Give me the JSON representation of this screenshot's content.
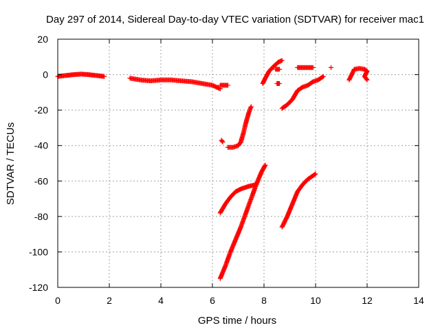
{
  "chart_data": {
    "type": "scatter",
    "title": "Day 297 of 2014, Sidereal Day-to-day VTEC variation (SDTVAR) for receiver mac1",
    "xlabel": "GPS time / hours",
    "ylabel": "SDTVAR / TECUs",
    "xlim": [
      0,
      14
    ],
    "ylim": [
      -120,
      20
    ],
    "xticks": [
      0,
      2,
      4,
      6,
      8,
      10,
      12,
      14
    ],
    "yticks": [
      -120,
      -100,
      -80,
      -60,
      -40,
      -20,
      0,
      20
    ],
    "grid": true,
    "marker": "+",
    "color": "#ff0000",
    "segments": [
      {
        "points": [
          [
            0.0,
            -1
          ],
          [
            0.3,
            -0.5
          ],
          [
            0.6,
            0
          ],
          [
            0.9,
            0.3
          ],
          [
            1.2,
            0
          ],
          [
            1.5,
            -0.5
          ],
          [
            1.8,
            -1
          ]
        ]
      },
      {
        "points": [
          [
            2.8,
            -2
          ],
          [
            3.2,
            -3
          ],
          [
            3.6,
            -3.5
          ],
          [
            4.0,
            -3
          ],
          [
            4.4,
            -3
          ],
          [
            4.8,
            -3.5
          ],
          [
            5.2,
            -4
          ],
          [
            5.6,
            -5
          ],
          [
            6.0,
            -6
          ],
          [
            6.3,
            -8
          ]
        ]
      },
      {
        "points": [
          [
            6.3,
            -6
          ],
          [
            6.6,
            -6
          ]
        ]
      },
      {
        "points": [
          [
            6.35,
            -37
          ],
          [
            6.4,
            -38
          ]
        ]
      },
      {
        "points": [
          [
            6.6,
            -41
          ],
          [
            6.8,
            -41
          ],
          [
            7.0,
            -40
          ],
          [
            7.1,
            -38
          ],
          [
            7.2,
            -33
          ],
          [
            7.3,
            -27
          ],
          [
            7.4,
            -22
          ],
          [
            7.5,
            -18
          ]
        ]
      },
      {
        "points": [
          [
            6.3,
            -78
          ],
          [
            6.5,
            -73
          ],
          [
            6.7,
            -69
          ],
          [
            6.9,
            -66
          ],
          [
            7.1,
            -64.5
          ],
          [
            7.4,
            -63
          ],
          [
            7.7,
            -62
          ]
        ]
      },
      {
        "points": [
          [
            6.3,
            -115
          ],
          [
            6.5,
            -108
          ],
          [
            6.7,
            -100
          ],
          [
            6.9,
            -93
          ],
          [
            7.1,
            -86
          ],
          [
            7.3,
            -78
          ],
          [
            7.5,
            -70
          ],
          [
            7.7,
            -62
          ],
          [
            7.9,
            -55
          ],
          [
            8.05,
            -51
          ]
        ]
      },
      {
        "points": [
          [
            7.95,
            -5
          ],
          [
            8.05,
            -2
          ],
          [
            8.2,
            2
          ],
          [
            8.4,
            5
          ],
          [
            8.55,
            7
          ],
          [
            8.7,
            8
          ]
        ]
      },
      {
        "points": [
          [
            8.45,
            3
          ],
          [
            8.6,
            3
          ]
        ]
      },
      {
        "points": [
          [
            8.5,
            -5
          ],
          [
            8.6,
            -5
          ]
        ]
      },
      {
        "points": [
          [
            8.7,
            -19
          ],
          [
            8.9,
            -17
          ],
          [
            9.1,
            -14
          ],
          [
            9.3,
            -9
          ],
          [
            9.5,
            -7
          ],
          [
            9.7,
            -6
          ],
          [
            9.9,
            -4
          ],
          [
            10.1,
            -3
          ],
          [
            10.3,
            -1
          ]
        ]
      },
      {
        "points": [
          [
            9.3,
            4
          ],
          [
            9.6,
            4
          ],
          [
            9.9,
            4
          ]
        ]
      },
      {
        "points": [
          [
            10.6,
            4
          ]
        ]
      },
      {
        "points": [
          [
            8.7,
            -86
          ],
          [
            8.9,
            -80
          ],
          [
            9.1,
            -73
          ],
          [
            9.3,
            -66
          ],
          [
            9.5,
            -62
          ],
          [
            9.7,
            -59
          ],
          [
            9.9,
            -57
          ],
          [
            10.0,
            -56
          ]
        ]
      },
      {
        "points": [
          [
            11.3,
            -3
          ],
          [
            11.5,
            3
          ],
          [
            11.7,
            3.5
          ],
          [
            11.9,
            3
          ],
          [
            12.0,
            2
          ],
          [
            11.9,
            -1
          ],
          [
            12.0,
            -3
          ]
        ]
      }
    ]
  }
}
